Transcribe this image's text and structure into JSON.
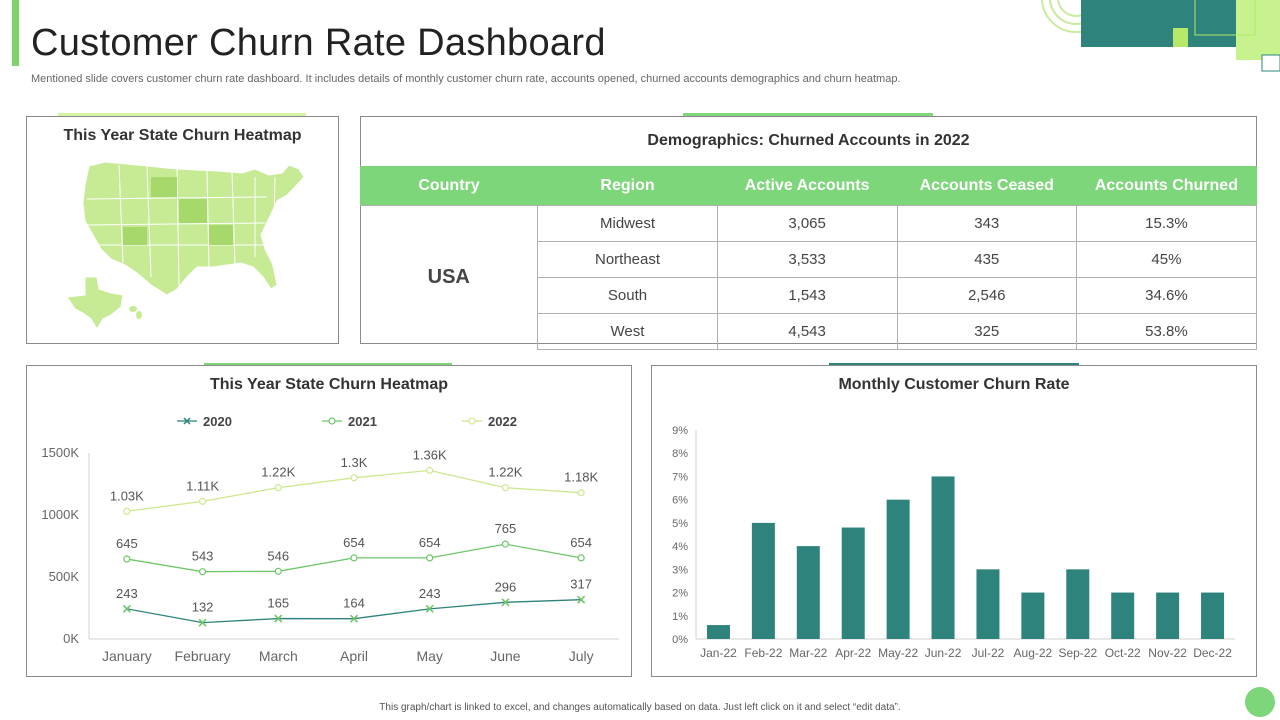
{
  "header": {
    "title": "Customer Churn Rate Dashboard",
    "subtitle": "Mentioned slide covers customer churn rate dashboard. It includes details of monthly customer churn rate, accounts opened, churned accounts demographics and churn heatmap."
  },
  "heatmap_panel": {
    "title": "This Year State Churn Heatmap"
  },
  "demographics": {
    "title": "Demographics: Churned Accounts in 2022",
    "columns": [
      "Country",
      "Region",
      "Active Accounts",
      "Accounts Ceased",
      "Accounts Churned"
    ],
    "country": "USA",
    "rows": [
      {
        "region": "Midwest",
        "active": "3,065",
        "ceased": "343",
        "churned": "15.3%"
      },
      {
        "region": "Northeast",
        "active": "3,533",
        "ceased": "435",
        "churned": "45%"
      },
      {
        "region": "South",
        "active": "1,543",
        "ceased": "2,546",
        "churned": "34.6%"
      },
      {
        "region": "West",
        "active": "4,543",
        "ceased": "325",
        "churned": "53.8%"
      }
    ]
  },
  "colors": {
    "green": "#7ed67a",
    "teal": "#2e837c",
    "line2020": "#2e837c",
    "line2021": "#6fc66a",
    "line2022": "#cde88f",
    "map_fill": "#c6eb94",
    "map_fill_dark": "#a7d86c"
  },
  "chart_data": [
    {
      "type": "line",
      "title": "This Year State Churn Heatmap",
      "categories": [
        "January",
        "February",
        "March",
        "April",
        "May",
        "June",
        "July"
      ],
      "yticks": [
        "0K",
        "500K",
        "1000K",
        "1500K"
      ],
      "ylim": [
        0,
        1500
      ],
      "series": [
        {
          "name": "2020",
          "values": [
            243,
            132,
            165,
            164,
            243,
            296,
            317
          ],
          "labels": [
            "243",
            "132",
            "165",
            "164",
            "243",
            "296",
            "317"
          ]
        },
        {
          "name": "2021",
          "values": [
            645,
            543,
            546,
            654,
            654,
            765,
            654
          ],
          "labels": [
            "645",
            "543",
            "546",
            "654",
            "654",
            "765",
            "654"
          ]
        },
        {
          "name": "2022",
          "values": [
            1030,
            1110,
            1220,
            1300,
            1360,
            1220,
            1180
          ],
          "labels": [
            "1.03K",
            "1.11K",
            "1.22K",
            "1.3K",
            "1.36K",
            "1.22K",
            "1.18K"
          ]
        }
      ],
      "legend_position": "top",
      "grid": false
    },
    {
      "type": "bar",
      "title": "Monthly Customer Churn Rate",
      "categories": [
        "Jan-22",
        "Feb-22",
        "Mar-22",
        "Apr-22",
        "May-22",
        "Jun-22",
        "Jul-22",
        "Aug-22",
        "Sep-22",
        "Oct-22",
        "Nov-22",
        "Dec-22"
      ],
      "values": [
        0.6,
        5.0,
        4.0,
        4.8,
        6.0,
        7.0,
        3.0,
        2.0,
        3.0,
        2.0,
        2.0,
        2.0
      ],
      "yticks": [
        "0%",
        "1%",
        "2%",
        "3%",
        "4%",
        "5%",
        "6%",
        "7%",
        "8%",
        "9%"
      ],
      "ylim": [
        0,
        9
      ],
      "grid": false
    }
  ],
  "footer": {
    "note": "This graph/chart is linked to excel, and changes automatically based on data. Just left click on it and select “edit data”."
  }
}
